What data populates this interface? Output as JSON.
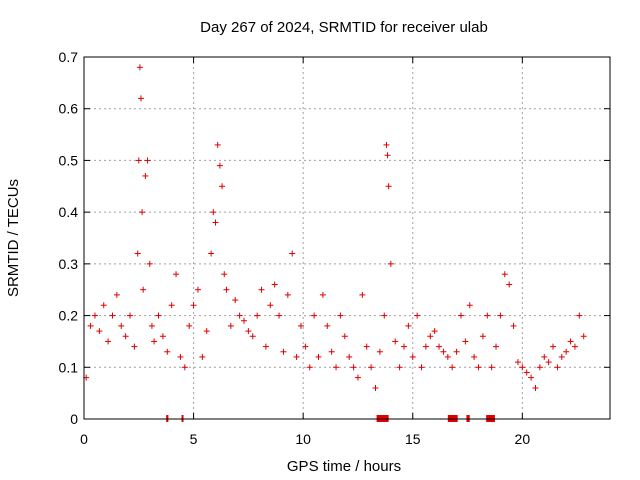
{
  "chart_data": {
    "type": "scatter",
    "title": "Day 267 of 2024, SRMTID for receiver ulab",
    "xlabel": "GPS time / hours",
    "ylabel": "SRMTID / TECUs",
    "xlim": [
      0,
      24
    ],
    "ylim": [
      0,
      0.7
    ],
    "xticks": [
      0,
      5,
      10,
      15,
      20
    ],
    "xtick_labels": [
      "0",
      "5",
      "10",
      "15",
      "20"
    ],
    "yticks": [
      0,
      0.1,
      0.2,
      0.3,
      0.4,
      0.5,
      0.6,
      0.7
    ],
    "ytick_labels": [
      "0",
      "0.1",
      "0.2",
      "0.3",
      "0.4",
      "0.5",
      "0.6",
      "0.7"
    ],
    "grid": true,
    "marker": "plus",
    "color": "#e00000",
    "series": [
      {
        "name": "SRMTID",
        "x": [
          0.1,
          0.3,
          0.5,
          0.7,
          0.9,
          1.1,
          1.3,
          1.5,
          1.7,
          1.9,
          2.1,
          2.3,
          2.45,
          2.5,
          2.55,
          2.6,
          2.65,
          2.7,
          2.8,
          2.9,
          3.0,
          3.1,
          3.2,
          3.4,
          3.6,
          3.8,
          4.0,
          4.2,
          4.4,
          4.6,
          4.8,
          5.0,
          5.2,
          5.4,
          5.6,
          5.8,
          5.9,
          6.0,
          6.1,
          6.2,
          6.3,
          6.4,
          6.5,
          6.7,
          6.9,
          7.1,
          7.3,
          7.5,
          7.7,
          7.9,
          8.1,
          8.3,
          8.5,
          8.7,
          8.9,
          9.1,
          9.3,
          9.5,
          9.7,
          9.9,
          10.1,
          10.3,
          10.5,
          10.7,
          10.9,
          11.1,
          11.3,
          11.5,
          11.7,
          11.9,
          12.1,
          12.3,
          12.5,
          12.7,
          12.9,
          13.1,
          13.3,
          13.5,
          13.7,
          13.8,
          13.85,
          13.9,
          14.0,
          14.2,
          14.4,
          14.6,
          14.8,
          15.0,
          15.2,
          15.4,
          15.6,
          15.8,
          16.0,
          16.2,
          16.4,
          16.6,
          16.8,
          17.0,
          17.2,
          17.4,
          17.6,
          17.8,
          18.0,
          18.2,
          18.4,
          18.6,
          18.8,
          19.0,
          19.2,
          19.4,
          19.6,
          19.8,
          20.0,
          20.2,
          20.4,
          20.6,
          20.8,
          21.0,
          21.2,
          21.4,
          21.6,
          21.8,
          22.0,
          22.2,
          22.4,
          22.6,
          22.8
        ],
        "y": [
          0.08,
          0.18,
          0.2,
          0.17,
          0.22,
          0.15,
          0.2,
          0.24,
          0.18,
          0.16,
          0.2,
          0.14,
          0.32,
          0.5,
          0.68,
          0.62,
          0.4,
          0.25,
          0.47,
          0.5,
          0.3,
          0.18,
          0.15,
          0.2,
          0.16,
          0.13,
          0.22,
          0.28,
          0.12,
          0.1,
          0.18,
          0.22,
          0.25,
          0.12,
          0.17,
          0.32,
          0.4,
          0.38,
          0.53,
          0.49,
          0.45,
          0.28,
          0.25,
          0.18,
          0.23,
          0.2,
          0.19,
          0.17,
          0.16,
          0.2,
          0.25,
          0.14,
          0.22,
          0.26,
          0.2,
          0.13,
          0.24,
          0.32,
          0.12,
          0.18,
          0.14,
          0.1,
          0.2,
          0.12,
          0.24,
          0.18,
          0.13,
          0.1,
          0.2,
          0.16,
          0.12,
          0.1,
          0.08,
          0.24,
          0.14,
          0.1,
          0.06,
          0.13,
          0.2,
          0.53,
          0.51,
          0.45,
          0.3,
          0.15,
          0.1,
          0.14,
          0.18,
          0.12,
          0.2,
          0.1,
          0.14,
          0.16,
          0.17,
          0.14,
          0.13,
          0.12,
          0.1,
          0.13,
          0.2,
          0.15,
          0.22,
          0.12,
          0.1,
          0.16,
          0.2,
          0.1,
          0.14,
          0.2,
          0.28,
          0.26,
          0.18,
          0.11,
          0.1,
          0.09,
          0.08,
          0.06,
          0.1,
          0.12,
          0.11,
          0.14,
          0.1,
          0.12,
          0.13,
          0.15,
          0.14,
          0.2,
          0.16
        ]
      }
    ],
    "data_gaps": [
      [
        3.75,
        3.85
      ],
      [
        4.45,
        4.5
      ],
      [
        13.35,
        13.9
      ],
      [
        16.6,
        17.05
      ],
      [
        17.45,
        17.6
      ],
      [
        18.35,
        18.75
      ]
    ]
  }
}
